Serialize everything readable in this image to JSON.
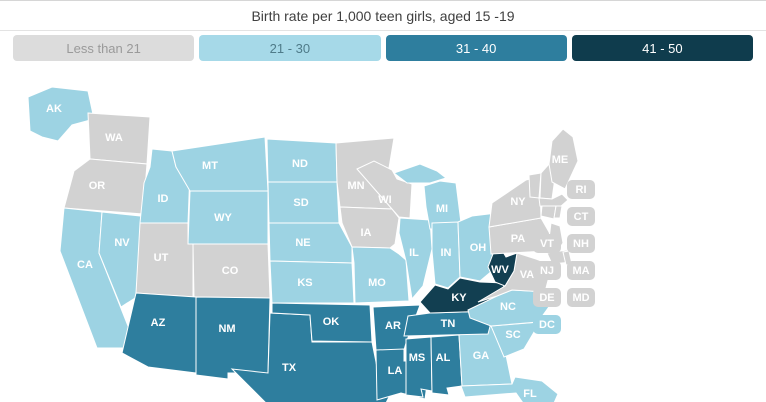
{
  "title": "Birth rate per 1,000 teen girls, aged 15 -19",
  "legend": {
    "items": [
      {
        "label": "Less than 21",
        "chip_bg": "#dcdcdc",
        "chip_text": "#9a9a9a",
        "map_fill": "#d2d2d2"
      },
      {
        "label": "21 - 30",
        "chip_bg": "#a6d9e8",
        "chip_text": "#4f7b89",
        "map_fill": "#9dd3e3"
      },
      {
        "label": "31 - 40",
        "chip_bg": "#2e7e9e",
        "chip_text": "#ffffff",
        "map_fill": "#2e7e9e"
      },
      {
        "label": "41 - 50",
        "chip_bg": "#0f3c4d",
        "chip_text": "#ffffff",
        "map_fill": "#123f51"
      }
    ]
  },
  "map": {
    "state_label_color": "#ffffff",
    "badge_text_color": "#ffffff",
    "badges": [
      {
        "abbr": "RI",
        "class": "Less than 21"
      },
      {
        "abbr": "CT",
        "class": "Less than 21"
      },
      {
        "abbr": "VT",
        "class": "Less than 21"
      },
      {
        "abbr": "NH",
        "class": "Less than 21"
      },
      {
        "abbr": "NJ",
        "class": "Less than 21"
      },
      {
        "abbr": "MA",
        "class": "Less than 21"
      },
      {
        "abbr": "DE",
        "class": "Less than 21"
      },
      {
        "abbr": "MD",
        "class": "Less than 21"
      },
      {
        "abbr": "DC",
        "class": "21 - 30"
      }
    ]
  },
  "chart_data": {
    "type": "choropleth",
    "title": "Birth rate per 1,000 teen girls, aged 15 -19",
    "region": "United States",
    "legend_position": "top",
    "classes": [
      {
        "label": "Less than 21",
        "min": 0,
        "max": 21
      },
      {
        "label": "21 - 30",
        "min": 21,
        "max": 30
      },
      {
        "label": "31 - 40",
        "min": 31,
        "max": 40
      },
      {
        "label": "41 - 50",
        "min": 41,
        "max": 50
      }
    ],
    "states": [
      {
        "abbr": "AK",
        "class": "21 - 30"
      },
      {
        "abbr": "WA",
        "class": "Less than 21"
      },
      {
        "abbr": "OR",
        "class": "Less than 21"
      },
      {
        "abbr": "CA",
        "class": "21 - 30"
      },
      {
        "abbr": "NV",
        "class": "21 - 30"
      },
      {
        "abbr": "ID",
        "class": "21 - 30"
      },
      {
        "abbr": "MT",
        "class": "21 - 30"
      },
      {
        "abbr": "WY",
        "class": "21 - 30"
      },
      {
        "abbr": "UT",
        "class": "Less than 21"
      },
      {
        "abbr": "CO",
        "class": "Less than 21"
      },
      {
        "abbr": "AZ",
        "class": "31 - 40"
      },
      {
        "abbr": "NM",
        "class": "31 - 40"
      },
      {
        "abbr": "ND",
        "class": "21 - 30"
      },
      {
        "abbr": "SD",
        "class": "21 - 30"
      },
      {
        "abbr": "NE",
        "class": "21 - 30"
      },
      {
        "abbr": "KS",
        "class": "21 - 30"
      },
      {
        "abbr": "OK",
        "class": "31 - 40"
      },
      {
        "abbr": "TX",
        "class": "31 - 40"
      },
      {
        "abbr": "MN",
        "class": "Less than 21"
      },
      {
        "abbr": "IA",
        "class": "Less than 21"
      },
      {
        "abbr": "MO",
        "class": "21 - 30"
      },
      {
        "abbr": "AR",
        "class": "31 - 40"
      },
      {
        "abbr": "LA",
        "class": "31 - 40"
      },
      {
        "abbr": "WI",
        "class": "Less than 21"
      },
      {
        "abbr": "IL",
        "class": "21 - 30"
      },
      {
        "abbr": "MS",
        "class": "31 - 40"
      },
      {
        "abbr": "MI",
        "class": "21 - 30"
      },
      {
        "abbr": "IN",
        "class": "21 - 30"
      },
      {
        "abbr": "OH",
        "class": "21 - 30"
      },
      {
        "abbr": "KY",
        "class": "41 - 50"
      },
      {
        "abbr": "TN",
        "class": "31 - 40"
      },
      {
        "abbr": "AL",
        "class": "31 - 40"
      },
      {
        "abbr": "WV",
        "class": "41 - 50"
      },
      {
        "abbr": "VA",
        "class": "Less than 21"
      },
      {
        "abbr": "NC",
        "class": "21 - 30"
      },
      {
        "abbr": "SC",
        "class": "21 - 30"
      },
      {
        "abbr": "GA",
        "class": "21 - 30"
      },
      {
        "abbr": "FL",
        "class": "21 - 30"
      },
      {
        "abbr": "PA",
        "class": "Less than 21"
      },
      {
        "abbr": "NY",
        "class": "Less than 21"
      },
      {
        "abbr": "NJ",
        "class": "Less than 21"
      },
      {
        "abbr": "DE",
        "class": "Less than 21"
      },
      {
        "abbr": "MD",
        "class": "Less than 21"
      },
      {
        "abbr": "VT",
        "class": "Less than 21"
      },
      {
        "abbr": "NH",
        "class": "Less than 21"
      },
      {
        "abbr": "MA",
        "class": "Less than 21"
      },
      {
        "abbr": "CT",
        "class": "Less than 21"
      },
      {
        "abbr": "RI",
        "class": "Less than 21"
      },
      {
        "abbr": "ME",
        "class": "Less than 21"
      },
      {
        "abbr": "DC",
        "class": "21 - 30"
      }
    ]
  }
}
